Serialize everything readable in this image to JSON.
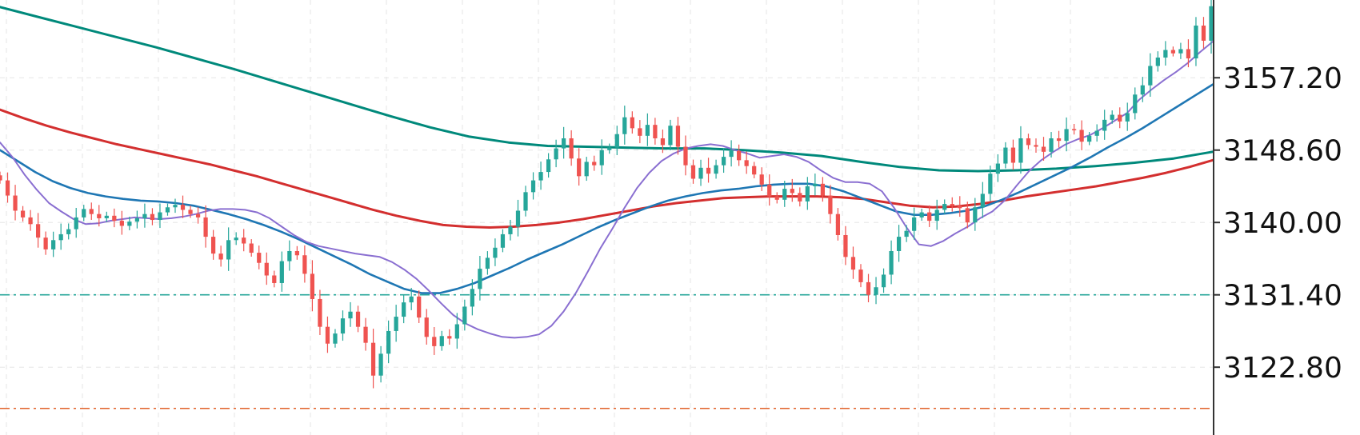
{
  "chart_data": {
    "type": "candlestick",
    "title": "",
    "xlabel": "",
    "ylabel": "",
    "ylim": [
      3114.74,
      3166.44
    ],
    "y_ticks": [
      "3157.20",
      "3148.60",
      "3140.00",
      "3131.40",
      "3122.80"
    ],
    "y_tick_values": [
      3157.2,
      3148.6,
      3140.0,
      3131.4,
      3122.8
    ],
    "horizontal_levels": [
      {
        "value": 3131.4,
        "color": "#26a69a",
        "style": "dash-dot"
      },
      {
        "value": 3117.9,
        "color": "#e0622a",
        "style": "dash-dot"
      }
    ],
    "colors": {
      "up": "#26a69a",
      "down": "#ef5350",
      "ma_fast": "#8a6fd1",
      "ma_mid": "#1f77b4",
      "ma_slow": "#d32f2f",
      "ma_long": "#00897b"
    },
    "close": [
      3145.0,
      3143.2,
      3141.4,
      3140.6,
      3139.8,
      3138.2,
      3136.8,
      3137.9,
      3138.6,
      3139.2,
      3140.6,
      3141.6,
      3141.0,
      3140.5,
      3140.8,
      3140.2,
      3139.6,
      3140.1,
      3140.5,
      3141.0,
      3140.3,
      3141.2,
      3141.8,
      3142.1,
      3141.5,
      3141.0,
      3140.6,
      3138.3,
      3136.3,
      3135.6,
      3137.9,
      3138.2,
      3137.5,
      3136.4,
      3135.2,
      3133.7,
      3132.8,
      3135.4,
      3136.6,
      3136.1,
      3133.9,
      3130.9,
      3127.6,
      3125.6,
      3126.8,
      3128.6,
      3129.4,
      3127.6,
      3125.7,
      3121.8,
      3124.4,
      3127.1,
      3128.8,
      3130.5,
      3131.2,
      3128.7,
      3126.4,
      3125.3,
      3126.5,
      3126.2,
      3127.9,
      3130.0,
      3132.1,
      3134.5,
      3135.8,
      3137.0,
      3138.6,
      3139.5,
      3141.4,
      3143.6,
      3145.0,
      3146.0,
      3147.5,
      3148.8,
      3150.0,
      3147.6,
      3145.5,
      3147.2,
      3146.8,
      3148.6,
      3148.9,
      3150.5,
      3152.5,
      3151.2,
      3150.3,
      3151.6,
      3150.0,
      3149.2,
      3151.5,
      3149.0,
      3146.8,
      3145.2,
      3146.5,
      3145.8,
      3146.8,
      3147.8,
      3148.5,
      3147.4,
      3146.7,
      3145.7,
      3144.5,
      3143.1,
      3142.7,
      3144.0,
      3143.5,
      3142.5,
      3144.3,
      3144.6,
      3143.2,
      3141.0,
      3138.5,
      3135.9,
      3134.4,
      3132.9,
      3131.4,
      3132.3,
      3133.8,
      3136.6,
      3138.3,
      3139.0,
      3140.6,
      3141.2,
      3140.2,
      3141.5,
      3142.2,
      3142.0,
      3141.7,
      3140.0,
      3141.8,
      3143.4,
      3145.8,
      3147.0,
      3148.9,
      3147.1,
      3150.0,
      3149.2,
      3149.0,
      3148.4,
      3150.0,
      3149.7,
      3151.1,
      3151.0,
      3149.6,
      3150.3,
      3150.9,
      3152.2,
      3152.8,
      3152.0,
      3153.0,
      3155.2,
      3156.3,
      3158.6,
      3159.6,
      3160.5,
      3160.1,
      3160.6,
      3159.5,
      3163.4,
      3161.6,
      3165.7
    ],
    "ma_fast": [
      3149.5,
      3147.8,
      3145.7,
      3143.9,
      3142.3,
      3141.3,
      3140.4,
      3139.8,
      3139.9,
      3140.2,
      3140.4,
      3140.6,
      3140.5,
      3140.4,
      3140.5,
      3140.7,
      3141.0,
      3141.4,
      3141.6,
      3141.6,
      3141.5,
      3141.2,
      3140.5,
      3139.5,
      3138.5,
      3137.7,
      3137.2,
      3136.9,
      3136.6,
      3136.3,
      3136.1,
      3135.9,
      3135.3,
      3134.4,
      3133.3,
      3131.9,
      3130.4,
      3129.0,
      3128.0,
      3127.3,
      3126.8,
      3126.4,
      3126.3,
      3126.4,
      3126.7,
      3127.7,
      3129.4,
      3131.6,
      3134.2,
      3136.9,
      3139.3,
      3141.8,
      3144.1,
      3145.9,
      3147.3,
      3148.2,
      3148.8,
      3149.1,
      3149.3,
      3149.1,
      3148.6,
      3148.2,
      3147.7,
      3147.9,
      3148.1,
      3147.8,
      3147.2,
      3146.2,
      3145.3,
      3144.8,
      3144.8,
      3144.6,
      3143.7,
      3141.7,
      3139.4,
      3137.4,
      3137.2,
      3137.8,
      3138.7,
      3139.5,
      3140.5,
      3141.3,
      3142.6,
      3144.4,
      3146.1,
      3147.4,
      3148.4,
      3149.3,
      3149.9,
      3150.4,
      3151.2,
      3152.1,
      3153.0,
      3154.6,
      3155.8,
      3156.9,
      3157.9,
      3159.0,
      3160.3,
      3161.5
    ],
    "ma_mid": [
      3148.6,
      3147.3,
      3146.0,
      3144.9,
      3144.1,
      3143.5,
      3143.1,
      3142.8,
      3142.6,
      3142.5,
      3142.3,
      3142.0,
      3141.5,
      3141.0,
      3140.4,
      3139.7,
      3138.9,
      3138.0,
      3137.0,
      3136.0,
      3135.0,
      3133.9,
      3133.0,
      3132.1,
      3131.6,
      3131.6,
      3132.1,
      3132.8,
      3133.7,
      3134.6,
      3135.6,
      3136.5,
      3137.4,
      3138.4,
      3139.4,
      3140.3,
      3141.1,
      3141.9,
      3142.6,
      3143.1,
      3143.5,
      3143.8,
      3144.0,
      3144.3,
      3144.5,
      3144.6,
      3144.6,
      3144.3,
      3143.7,
      3142.9,
      3142.1,
      3141.3,
      3140.9,
      3140.9,
      3141.1,
      3141.4,
      3141.9,
      3142.7,
      3143.6,
      3144.6,
      3145.6,
      3146.6,
      3147.7,
      3148.9,
      3150.0,
      3151.2,
      3152.5,
      3153.8,
      3155.1,
      3156.4
    ],
    "ma_slow": [
      3153.4,
      3152.4,
      3151.5,
      3150.7,
      3150.0,
      3149.3,
      3148.7,
      3148.1,
      3147.5,
      3146.9,
      3146.2,
      3145.5,
      3144.7,
      3143.9,
      3143.1,
      3142.3,
      3141.5,
      3140.8,
      3140.2,
      3139.7,
      3139.5,
      3139.4,
      3139.5,
      3139.7,
      3140.0,
      3140.4,
      3140.9,
      3141.4,
      3141.9,
      3142.3,
      3142.6,
      3142.9,
      3143.0,
      3143.1,
      3143.1,
      3143.1,
      3143.0,
      3142.8,
      3142.4,
      3142.0,
      3141.8,
      3141.9,
      3142.2,
      3142.6,
      3143.1,
      3143.5,
      3143.9,
      3144.3,
      3144.8,
      3145.3,
      3145.9,
      3146.6,
      3147.4
    ],
    "ma_long": [
      3165.6,
      3164.4,
      3163.2,
      3162.0,
      3160.8,
      3159.5,
      3158.2,
      3156.8,
      3155.4,
      3154.0,
      3152.6,
      3151.3,
      3150.2,
      3149.5,
      3149.1,
      3149.0,
      3148.9,
      3148.8,
      3148.8,
      3148.6,
      3148.3,
      3147.9,
      3147.2,
      3146.6,
      3146.2,
      3146.1,
      3146.2,
      3146.4,
      3146.7,
      3147.1,
      3147.6,
      3148.4
    ]
  }
}
